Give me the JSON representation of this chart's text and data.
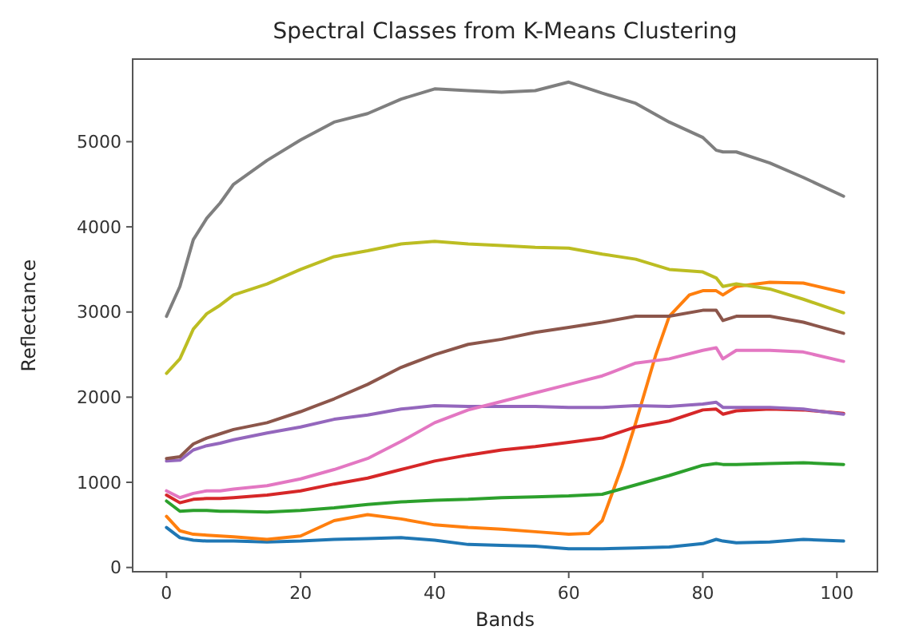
{
  "chart_data": {
    "type": "line",
    "title": "Spectral Classes from K-Means Clustering",
    "xlabel": "Bands",
    "ylabel": "Reflectance",
    "x": [
      0,
      2,
      4,
      6,
      8,
      10,
      15,
      20,
      25,
      30,
      35,
      40,
      45,
      50,
      55,
      60,
      65,
      70,
      75,
      80,
      82,
      83,
      85,
      90,
      95,
      101
    ],
    "xlim": [
      -5.05,
      106.05
    ],
    "xticks": [
      0,
      20,
      40,
      60,
      80,
      100
    ],
    "ylim": [
      -50,
      5970
    ],
    "yticks": [
      0,
      1000,
      2000,
      3000,
      4000,
      5000
    ],
    "series": [
      {
        "color": "#1f77b4",
        "values": [
          470,
          350,
          320,
          310,
          310,
          310,
          300,
          310,
          330,
          340,
          350,
          320,
          270,
          260,
          250,
          220,
          220,
          230,
          240,
          280,
          330,
          310,
          290,
          300,
          330,
          310
        ]
      },
      {
        "color": "#ff7f0e",
        "x": [
          0,
          2,
          4,
          6,
          8,
          10,
          15,
          20,
          25,
          30,
          35,
          40,
          45,
          50,
          55,
          60,
          63,
          65,
          68,
          70,
          73,
          75,
          78,
          80,
          82,
          83,
          85,
          90,
          95,
          101
        ],
        "values": [
          600,
          430,
          390,
          380,
          370,
          360,
          330,
          370,
          550,
          620,
          570,
          500,
          470,
          450,
          420,
          390,
          400,
          550,
          1200,
          1700,
          2500,
          2950,
          3200,
          3250,
          3250,
          3200,
          3300,
          3350,
          3340,
          3230
        ]
      },
      {
        "color": "#2ca02c",
        "values": [
          780,
          660,
          670,
          670,
          660,
          660,
          650,
          670,
          700,
          740,
          770,
          790,
          800,
          820,
          830,
          840,
          860,
          970,
          1080,
          1200,
          1220,
          1210,
          1210,
          1220,
          1230,
          1210
        ]
      },
      {
        "color": "#d62728",
        "values": [
          850,
          760,
          800,
          810,
          810,
          820,
          850,
          900,
          980,
          1050,
          1150,
          1250,
          1320,
          1380,
          1420,
          1470,
          1520,
          1650,
          1720,
          1850,
          1860,
          1800,
          1840,
          1860,
          1850,
          1810
        ]
      },
      {
        "color": "#9467bd",
        "values": [
          1250,
          1260,
          1380,
          1430,
          1460,
          1500,
          1580,
          1650,
          1740,
          1790,
          1860,
          1900,
          1890,
          1890,
          1890,
          1880,
          1880,
          1900,
          1890,
          1920,
          1940,
          1880,
          1880,
          1880,
          1860,
          1800
        ]
      },
      {
        "color": "#8c564b",
        "values": [
          1280,
          1300,
          1450,
          1520,
          1570,
          1620,
          1700,
          1830,
          1980,
          2150,
          2350,
          2500,
          2620,
          2680,
          2760,
          2820,
          2880,
          2950,
          2950,
          3020,
          3020,
          2900,
          2950,
          2950,
          2880,
          2750
        ]
      },
      {
        "color": "#e377c2",
        "values": [
          900,
          820,
          870,
          900,
          900,
          920,
          960,
          1040,
          1150,
          1280,
          1480,
          1700,
          1850,
          1950,
          2050,
          2150,
          2250,
          2400,
          2450,
          2550,
          2580,
          2450,
          2550,
          2550,
          2530,
          2420
        ]
      },
      {
        "color": "#7f7f7f",
        "values": [
          2950,
          3300,
          3850,
          4100,
          4280,
          4500,
          4780,
          5020,
          5230,
          5330,
          5500,
          5620,
          5600,
          5580,
          5600,
          5700,
          5570,
          5450,
          5230,
          5050,
          4900,
          4880,
          4880,
          4750,
          4580,
          4360
        ]
      },
      {
        "color": "#bcbd22",
        "values": [
          2280,
          2450,
          2800,
          2980,
          3080,
          3200,
          3330,
          3500,
          3650,
          3720,
          3800,
          3830,
          3800,
          3780,
          3760,
          3750,
          3680,
          3620,
          3500,
          3470,
          3400,
          3300,
          3330,
          3270,
          3150,
          2990
        ]
      }
    ]
  }
}
